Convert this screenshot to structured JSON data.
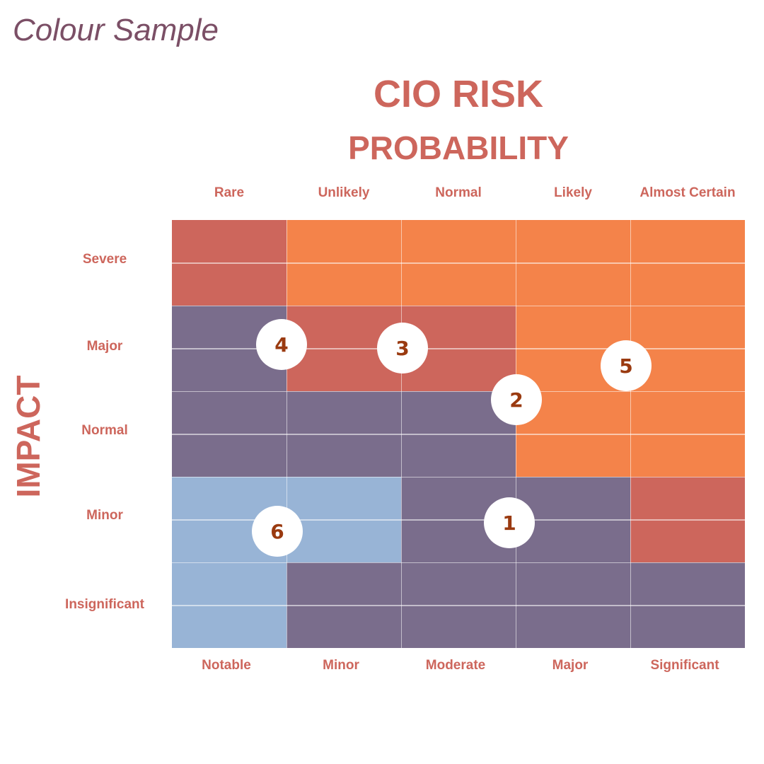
{
  "caption": "Colour Sample",
  "title": "CIO RISK",
  "subtitle": "PROBABILITY",
  "y_title": "IMPACT",
  "probability_labels": [
    "Rare",
    "Unlikely",
    "Normal",
    "Likely",
    "Almost Certain"
  ],
  "consequence_labels": [
    "Notable",
    "Minor",
    "Moderate",
    "Major",
    "Significant"
  ],
  "impact_labels": [
    "Severe",
    "Major",
    "Normal",
    "Minor",
    "Insignificant"
  ],
  "colors": {
    "red": "#CD665C",
    "orange": "#F4834A",
    "purple": "#7A6D8C",
    "blue": "#98B4D6"
  },
  "matrix": [
    [
      "red",
      "orange",
      "orange",
      "orange",
      "orange"
    ],
    [
      "purple",
      "red",
      "red",
      "orange",
      "orange"
    ],
    [
      "purple",
      "purple",
      "purple",
      "orange",
      "orange"
    ],
    [
      "blue",
      "blue",
      "purple",
      "purple",
      "red"
    ],
    [
      "blue",
      "purple",
      "purple",
      "purple",
      "purple"
    ]
  ],
  "markers": [
    "1",
    "2",
    "3",
    "4",
    "5",
    "6"
  ]
}
